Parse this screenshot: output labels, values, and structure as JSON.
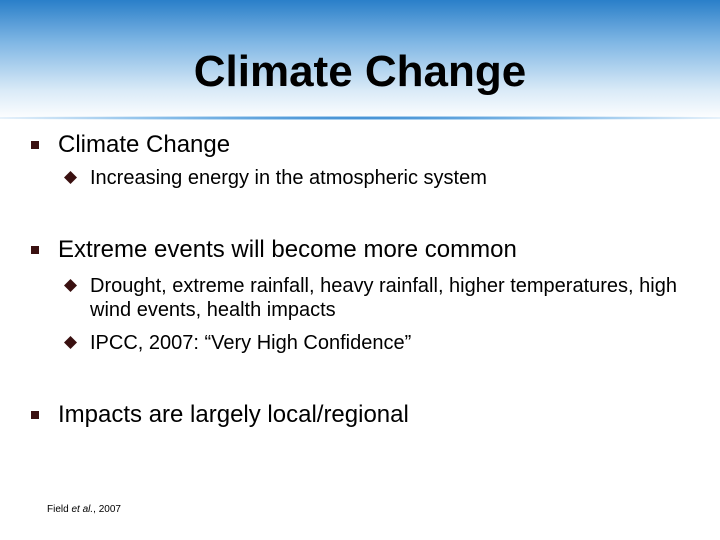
{
  "title": "Climate Change",
  "bullets": [
    {
      "text": "Climate Change",
      "subbullets": [
        "Increasing energy in the atmospheric system"
      ]
    },
    {
      "text": "Extreme events will become more common",
      "subbullets": [
        "Drought, extreme rainfall, heavy rainfall, higher temperatures, high wind events, health impacts",
        "IPCC, 2007: “Very High Confidence”"
      ]
    },
    {
      "text": "Impacts are largely local/regional"
    }
  ],
  "footnote": {
    "author": "Field",
    "etal": "et al.",
    "year": ", 2007"
  }
}
